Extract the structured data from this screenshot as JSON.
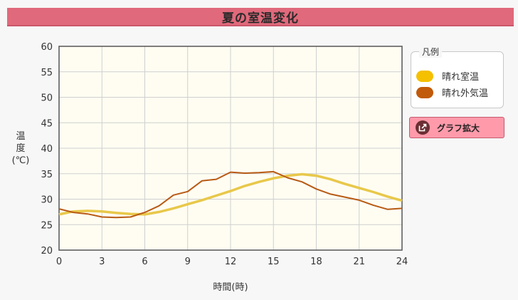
{
  "title": "夏の室温変化",
  "legend": {
    "title": "凡例",
    "items": [
      {
        "label": "晴れ室温",
        "color": "#f5c000"
      },
      {
        "label": "晴れ外気温",
        "color": "#c15a0a"
      }
    ]
  },
  "zoom_button": {
    "label": "グラフ拡大",
    "icon": "external-link-icon"
  },
  "y_title_lines": [
    "温",
    "度",
    "(℃)"
  ],
  "x_title": "時間(時)",
  "chart_data": {
    "type": "line",
    "xlabel": "時間(時)",
    "ylabel": "温度(℃)",
    "xlim": [
      0,
      24
    ],
    "ylim": [
      20,
      60
    ],
    "xticks": [
      0,
      3,
      6,
      9,
      12,
      15,
      18,
      21,
      24
    ],
    "yticks": [
      20,
      25,
      30,
      35,
      40,
      45,
      50,
      55,
      60
    ],
    "grid": true,
    "legend_position": "right",
    "x": [
      0,
      1,
      2,
      3,
      4,
      5,
      6,
      7,
      8,
      9,
      10,
      11,
      12,
      13,
      14,
      15,
      16,
      17,
      18,
      19,
      20,
      21,
      22,
      23,
      24
    ],
    "series": [
      {
        "name": "晴れ室温",
        "color": "#f5c000",
        "values": [
          27.0,
          27.6,
          27.7,
          27.6,
          27.3,
          27.1,
          27.0,
          27.5,
          28.2,
          29.0,
          29.8,
          30.7,
          31.6,
          32.6,
          33.4,
          34.1,
          34.6,
          34.9,
          34.6,
          33.9,
          33.0,
          32.2,
          31.4,
          30.5,
          29.7
        ]
      },
      {
        "name": "晴れ外気温",
        "color": "#c15a0a",
        "values": [
          28.1,
          27.4,
          27.1,
          26.5,
          26.4,
          26.5,
          27.4,
          28.7,
          30.8,
          31.5,
          33.6,
          33.9,
          35.3,
          35.1,
          35.2,
          35.4,
          34.2,
          33.4,
          32.0,
          31.0,
          30.4,
          29.8,
          28.8,
          28.0,
          28.2
        ]
      }
    ]
  }
}
